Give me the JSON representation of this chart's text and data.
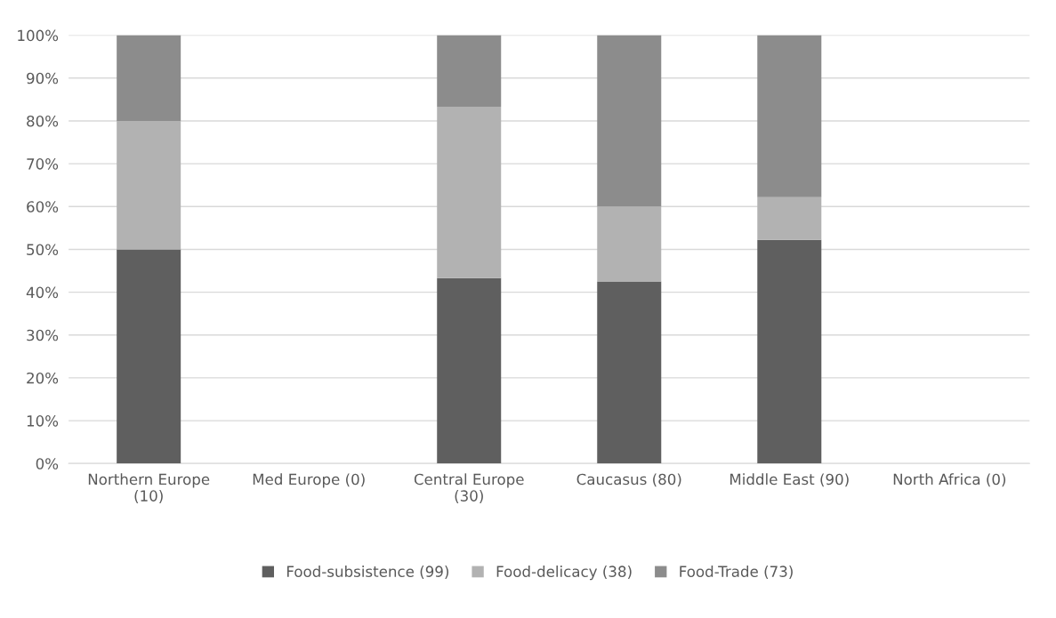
{
  "chart_data": {
    "type": "bar",
    "stacked": true,
    "categories": [
      "Northern Europe\n(10)",
      "Med Europe (0)",
      "Central Europe\n(30)",
      "Caucasus (80)",
      "Middle East (90)",
      "North Africa (0)"
    ],
    "series": [
      {
        "name": "Food-subsistence (99)",
        "color": "#5f5f5f",
        "values": [
          50,
          null,
          43.3,
          42.5,
          52.2,
          null
        ]
      },
      {
        "name": "Food-delicacy (38)",
        "color": "#b2b2b2",
        "values": [
          30,
          null,
          40,
          17.5,
          10,
          null
        ]
      },
      {
        "name": "Food-Trade (73)",
        "color": "#8c8c8c",
        "values": [
          20,
          null,
          16.7,
          40,
          37.8,
          null
        ]
      }
    ],
    "ylim": [
      0,
      100
    ],
    "yticks": [
      {
        "value": 0,
        "label": "0%"
      },
      {
        "value": 10,
        "label": "10%"
      },
      {
        "value": 20,
        "label": "20%"
      },
      {
        "value": 30,
        "label": "30%"
      },
      {
        "value": 40,
        "label": "40%"
      },
      {
        "value": 50,
        "label": "50%"
      },
      {
        "value": 60,
        "label": "60%"
      },
      {
        "value": 70,
        "label": "70%"
      },
      {
        "value": 80,
        "label": "80%"
      },
      {
        "value": 90,
        "label": "90%"
      },
      {
        "value": 100,
        "label": "100%"
      }
    ],
    "grid": "y",
    "legend": "bottom"
  }
}
